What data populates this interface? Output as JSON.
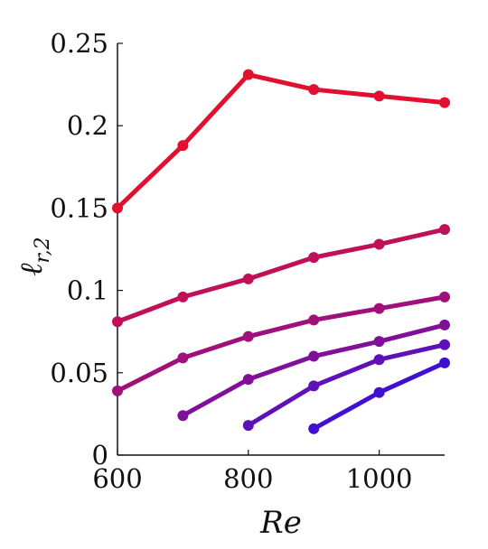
{
  "chart_data": {
    "type": "line",
    "xlabel": "Re",
    "ylabel": {
      "main": "ℓ",
      "sub": "r,2"
    },
    "xlim": [
      600,
      1100
    ],
    "ylim": [
      0,
      0.25
    ],
    "xticks": [
      600,
      800,
      1000
    ],
    "xtick_labels": [
      "600",
      "800",
      "1000"
    ],
    "yticks": [
      0,
      0.05,
      0.1,
      0.15,
      0.2,
      0.25
    ],
    "ytick_labels": [
      "0",
      "0.05",
      "0.1",
      "0.15",
      "0.2",
      "0.25"
    ],
    "grid": false,
    "legend": "none",
    "series": [
      {
        "color": "#e0102e",
        "x": [
          600,
          700,
          800,
          900,
          1000,
          1100
        ],
        "y": [
          0.15,
          0.188,
          0.231,
          0.222,
          0.218,
          0.214
        ]
      },
      {
        "color": "#c0105a",
        "x": [
          600,
          700,
          800,
          900,
          1000,
          1100
        ],
        "y": [
          0.081,
          0.096,
          0.107,
          0.12,
          0.128,
          0.137
        ]
      },
      {
        "color": "#a0107a",
        "x": [
          600,
          700,
          800,
          900,
          1000,
          1100
        ],
        "y": [
          0.039,
          0.059,
          0.072,
          0.082,
          0.089,
          0.096
        ]
      },
      {
        "color": "#80109a",
        "x": [
          700,
          800,
          900,
          1000,
          1100
        ],
        "y": [
          0.024,
          0.046,
          0.06,
          0.069,
          0.079
        ]
      },
      {
        "color": "#6010b8",
        "x": [
          800,
          900,
          1000,
          1100
        ],
        "y": [
          0.018,
          0.042,
          0.058,
          0.067
        ]
      },
      {
        "color": "#4010d0",
        "x": [
          900,
          1000,
          1100
        ],
        "y": [
          0.016,
          0.038,
          0.056
        ]
      }
    ]
  }
}
